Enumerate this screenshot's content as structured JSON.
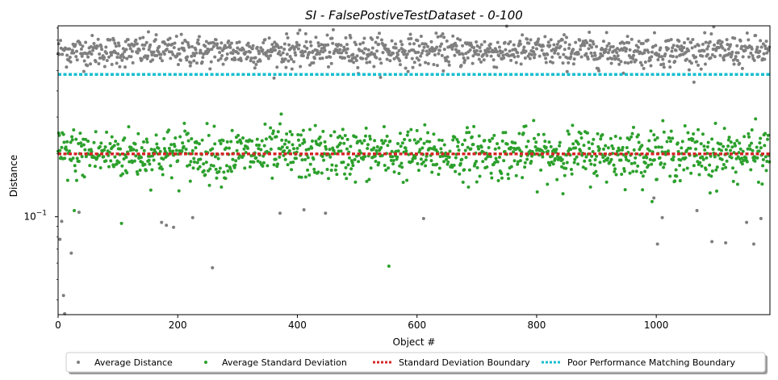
{
  "chart_data": {
    "type": "scatter",
    "title": "SI - FalsePostiveTestDataset - 0-100",
    "xlabel": "Object #",
    "ylabel": "Distance",
    "xlim": [
      0,
      1190
    ],
    "ylim": [
      0.034,
      0.82
    ],
    "yscale": "log",
    "grid": false,
    "legend_position": "bottom-center",
    "x_ticks": [
      0,
      200,
      400,
      600,
      800,
      1000
    ],
    "x_tick_labels": [
      "0",
      "200",
      "400",
      "600",
      "800",
      "1000"
    ],
    "y_major_tick": {
      "value": 0.1,
      "base": "10",
      "exponent": "−1"
    },
    "series": [
      {
        "name": "Average Distance",
        "kind": "points",
        "color": "#7f7f7f",
        "count": 1190,
        "distribution": {
          "median": 0.62,
          "spread": 0.085
        },
        "sample": [
          {
            "x": 3,
            "y": 0.078
          },
          {
            "x": 6,
            "y": 0.095
          },
          {
            "x": 9,
            "y": 0.042
          },
          {
            "x": 11,
            "y": 0.034
          },
          {
            "x": 22,
            "y": 0.067
          },
          {
            "x": 35,
            "y": 0.105
          },
          {
            "x": 173,
            "y": 0.094
          },
          {
            "x": 181,
            "y": 0.091
          },
          {
            "x": 193,
            "y": 0.089
          },
          {
            "x": 225,
            "y": 0.099
          },
          {
            "x": 258,
            "y": 0.057
          },
          {
            "x": 371,
            "y": 0.104
          },
          {
            "x": 411,
            "y": 0.108
          },
          {
            "x": 447,
            "y": 0.104
          },
          {
            "x": 611,
            "y": 0.098
          },
          {
            "x": 996,
            "y": 0.123
          },
          {
            "x": 1002,
            "y": 0.074
          },
          {
            "x": 1010,
            "y": 0.099
          },
          {
            "x": 1068,
            "y": 0.107
          },
          {
            "x": 1093,
            "y": 0.076
          },
          {
            "x": 1116,
            "y": 0.075
          },
          {
            "x": 1151,
            "y": 0.094
          },
          {
            "x": 1163,
            "y": 0.074
          },
          {
            "x": 1175,
            "y": 0.098
          }
        ]
      },
      {
        "name": "Average Standard Deviation",
        "kind": "points",
        "color": "#2ca02c",
        "count": 1190,
        "distribution": {
          "median": 0.2,
          "spread": 0.14
        },
        "sample": [
          {
            "x": 27,
            "y": 0.107
          },
          {
            "x": 106,
            "y": 0.093
          },
          {
            "x": 553,
            "y": 0.058
          },
          {
            "x": 211,
            "y": 0.28
          },
          {
            "x": 373,
            "y": 0.31
          },
          {
            "x": 1090,
            "y": 0.13
          }
        ]
      },
      {
        "name": "Standard Deviation Boundary",
        "kind": "hline",
        "style": "dotted",
        "color": "#d62728",
        "y": 0.2
      },
      {
        "name": "Poor Performance Matching Boundary",
        "kind": "hline",
        "style": "dotted",
        "color": "#17becf",
        "y": 0.48
      }
    ]
  }
}
